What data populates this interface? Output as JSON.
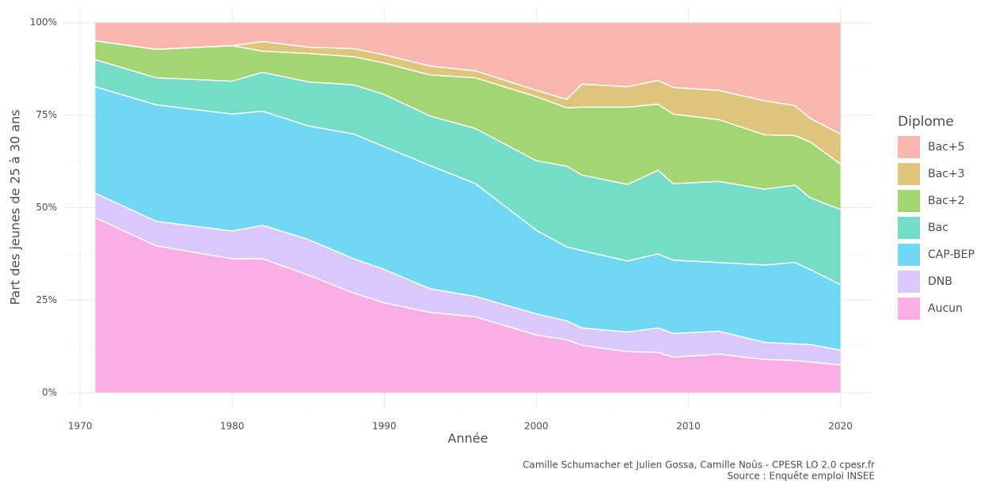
{
  "chart_data": {
    "type": "stacked-area",
    "x_label": "Année",
    "y_label": "Part des jeunes de 25 à 30 ans",
    "legend_title": "Diplome",
    "legend": "right",
    "grid": true,
    "caption": [
      "Camille Schumacher et Julien Gossa, Camille Noûs - CPESR LO 2.0 cpesr.fr",
      "Source : Enquête emploi INSEE"
    ],
    "x": [
      1971,
      1975,
      1980,
      1982,
      1985,
      1988,
      1990,
      1993,
      1996,
      2000,
      2002,
      2003,
      2006,
      2008,
      2009,
      2012,
      2015,
      2017,
      2018,
      2020
    ],
    "xlim": [
      1969,
      2022
    ],
    "xticks": [
      1970,
      1980,
      1990,
      2000,
      2010,
      2020
    ],
    "ylim": [
      -4,
      104
    ],
    "yticks": [
      {
        "value": 0,
        "label": "0%"
      },
      {
        "value": 25,
        "label": "25%"
      },
      {
        "value": 50,
        "label": "50%"
      },
      {
        "value": 75,
        "label": "75%"
      },
      {
        "value": 100,
        "label": "100%"
      }
    ],
    "series": [
      {
        "name": "Aucun",
        "color": "#f9afe6",
        "values": [
          47.3,
          39.7,
          36.2,
          36.2,
          31.8,
          26.9,
          24.3,
          21.7,
          20.5,
          15.6,
          14.3,
          12.8,
          11.1,
          10.9,
          9.6,
          10.4,
          9.0,
          8.7,
          8.3,
          7.5
        ]
      },
      {
        "name": "DNB",
        "color": "#dac7fb",
        "values": [
          6.6,
          6.6,
          7.5,
          9.0,
          9.6,
          9.3,
          9.0,
          6.4,
          5.5,
          5.7,
          5.1,
          4.7,
          5.3,
          6.6,
          6.4,
          6.2,
          4.6,
          4.5,
          4.7,
          4.0
        ]
      },
      {
        "name": "CAP-BEP",
        "color": "#70d8f3",
        "values": [
          28.8,
          31.5,
          31.6,
          30.9,
          30.7,
          33.7,
          33.2,
          33.3,
          30.5,
          22.6,
          20.0,
          20.9,
          19.2,
          20.0,
          19.8,
          18.6,
          20.9,
          22.0,
          20.3,
          17.7
        ]
      },
      {
        "name": "Bac",
        "color": "#75dcc7",
        "values": [
          7.3,
          7.3,
          8.9,
          10.5,
          11.9,
          13.3,
          14.1,
          13.4,
          14.9,
          18.8,
          21.8,
          20.4,
          20.7,
          22.6,
          20.7,
          21.9,
          20.5,
          20.9,
          19.4,
          20.3
        ]
      },
      {
        "name": "Bac+2",
        "color": "#a3d573",
        "values": [
          5.1,
          7.7,
          9.6,
          5.7,
          7.7,
          7.6,
          8.5,
          11.1,
          13.7,
          17.3,
          15.8,
          18.4,
          20.9,
          17.9,
          18.8,
          16.7,
          14.7,
          13.4,
          15.1,
          12.3
        ]
      },
      {
        "name": "Bac+3",
        "color": "#dfc57b",
        "values": [
          0,
          0,
          0,
          2.6,
          1.7,
          2.2,
          2.2,
          2.4,
          1.9,
          1.7,
          2.3,
          6.2,
          5.5,
          6.4,
          7.2,
          7.9,
          9.2,
          8.1,
          6.4,
          8.1
        ]
      },
      {
        "name": "Bac+5",
        "color": "#f9b6b0",
        "values": [
          4.9,
          7.2,
          6.2,
          5.1,
          6.6,
          7.0,
          8.7,
          11.7,
          13.0,
          18.3,
          20.7,
          16.6,
          17.3,
          15.6,
          17.5,
          18.3,
          21.1,
          22.4,
          25.8,
          30.1
        ]
      }
    ]
  }
}
